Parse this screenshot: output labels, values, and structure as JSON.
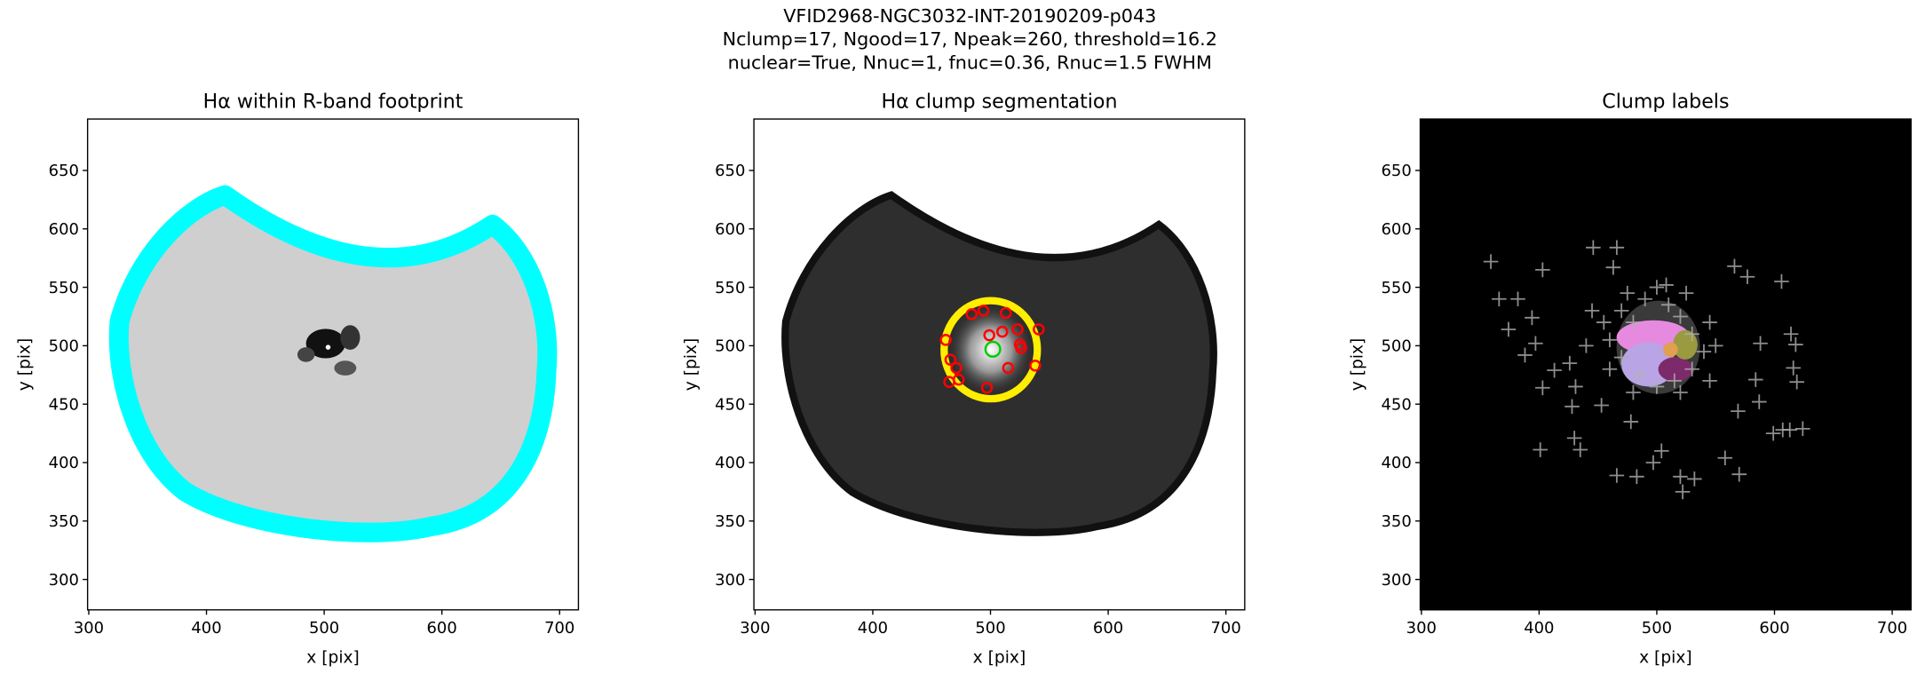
{
  "suptitle": [
    "VFID2968-NGC3032-INT-20190209-p043",
    "Nclump=17, Ngood=17, Npeak=260, threshold=16.2",
    "nuclear=True, Nnuc=1, fnuc=0.36, Rnuc=1.5 FWHM"
  ],
  "chart_data": [
    {
      "type": "image",
      "title": "Hα within R-band footprint",
      "xlabel": "x [pix]",
      "ylabel": "y [pix]",
      "xlim": [
        299,
        716
      ],
      "ylim": [
        274,
        694
      ],
      "xticks": [
        300,
        400,
        500,
        600,
        700
      ],
      "yticks": [
        300,
        350,
        400,
        450,
        500,
        550,
        600,
        650
      ],
      "series": []
    },
    {
      "type": "image",
      "title": "Hα clump segmentation",
      "xlabel": "x [pix]",
      "ylabel": "y [pix]",
      "xlim": [
        299,
        716
      ],
      "ylim": [
        274,
        694
      ],
      "xticks": [
        300,
        400,
        500,
        600,
        700
      ],
      "yticks": [
        300,
        350,
        400,
        450,
        500,
        550,
        600,
        650
      ],
      "series": [
        {
          "marker": "o",
          "color": "#ff0000",
          "x": [
            499,
            484,
            494,
            513,
            462,
            466,
            471,
            473,
            465,
            523,
            525,
            541,
            538,
            515,
            526,
            497,
            510
          ],
          "values": [
            509,
            527,
            530,
            528,
            505,
            488,
            481,
            471,
            469,
            514,
            501,
            514,
            483,
            481,
            498,
            464,
            512
          ]
        },
        {
          "marker": "o",
          "color": "#00cc00",
          "x": [
            502
          ],
          "values": [
            497
          ]
        }
      ]
    },
    {
      "type": "image",
      "title": "Clump labels",
      "xlabel": "x [pix]",
      "ylabel": "y [pix]",
      "xlim": [
        299,
        716
      ],
      "ylim": [
        274,
        694
      ],
      "xticks": [
        300,
        400,
        500,
        600,
        700
      ],
      "yticks": [
        300,
        350,
        400,
        450,
        500,
        550,
        600,
        650
      ],
      "series": [
        {
          "marker": "+",
          "color": "#b0b0b0",
          "x": [
            359,
            366,
            382,
            394,
            374,
            388,
            403,
            397,
            413,
            426,
            431,
            403,
            428,
            430,
            435,
            401,
            446,
            466,
            463,
            453,
            466,
            483,
            478,
            497,
            504,
            520,
            522,
            532,
            508,
            566,
            577,
            606,
            614,
            618,
            588,
            584,
            569,
            558,
            570,
            587,
            599,
            613,
            624,
            619,
            616,
            607,
            470,
            480,
            490,
            510,
            520,
            530,
            540,
            530,
            515,
            500,
            485,
            470,
            460,
            455,
            475,
            500,
            525,
            545,
            550,
            545,
            520,
            480,
            460,
            440,
            445
          ],
          "values": [
            572,
            540,
            540,
            524,
            514,
            492,
            565,
            502,
            479,
            485,
            465,
            464,
            448,
            421,
            411,
            411,
            584,
            584,
            567,
            449,
            389,
            388,
            435,
            400,
            410,
            388,
            375,
            386,
            552,
            568,
            559,
            555,
            510,
            501,
            502,
            471,
            444,
            404,
            390,
            452,
            425,
            428,
            429,
            469,
            481,
            428,
            530,
            520,
            540,
            535,
            525,
            510,
            495,
            480,
            470,
            465,
            475,
            490,
            505,
            520,
            545,
            550,
            545,
            520,
            500,
            470,
            460,
            460,
            480,
            500,
            530
          ]
        }
      ]
    }
  ]
}
